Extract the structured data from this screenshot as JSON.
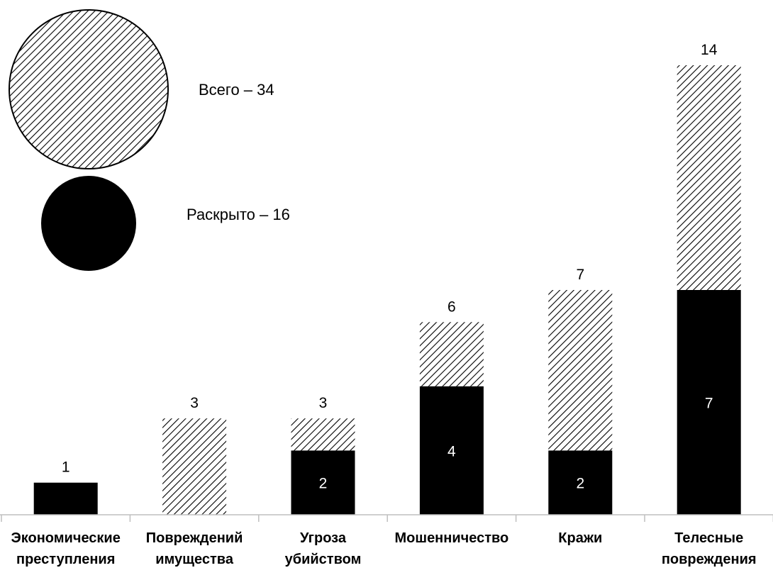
{
  "legend": {
    "total_label": "Всего – 34",
    "solved_label": "Раскрыто – 16"
  },
  "chart_data": {
    "type": "bar",
    "stacked": "overlay",
    "categories": [
      [
        "Экономические",
        "преступления"
      ],
      [
        "Повреждений",
        "имущества"
      ],
      [
        "Угроза",
        "убийством"
      ],
      [
        "Мошенничество"
      ],
      [
        "Кражи"
      ],
      [
        "Телесные",
        "повреждения"
      ]
    ],
    "series": [
      {
        "name": "Всего – 34",
        "values": [
          1,
          3,
          3,
          6,
          7,
          14
        ],
        "fill": "hatched"
      },
      {
        "name": "Раскрыто – 16",
        "values": [
          1,
          0,
          2,
          4,
          2,
          7
        ],
        "fill": "#000000"
      }
    ],
    "total_labels": [
      "1",
      "3",
      "3",
      "6",
      "7",
      "14"
    ],
    "inner_labels": [
      "",
      "",
      "2",
      "4",
      "2",
      "7"
    ],
    "ylim": [
      0,
      14
    ],
    "grid": false,
    "legend_position": "top-left",
    "colors": {
      "hatch": "#000000",
      "solid": "#000000",
      "background": "#ffffff"
    }
  }
}
